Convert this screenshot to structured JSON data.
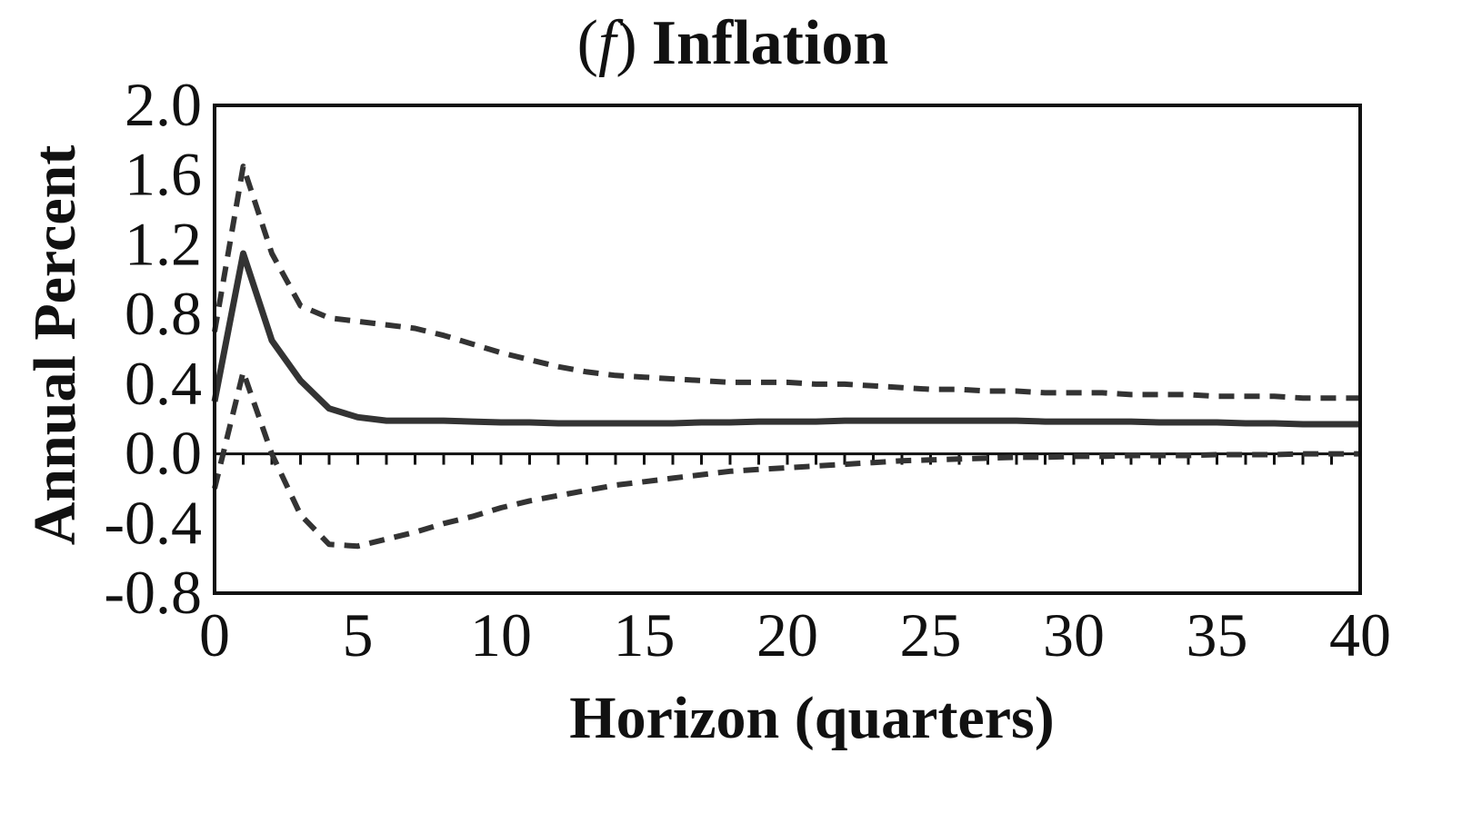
{
  "chart_data": {
    "type": "line",
    "title": {
      "prefix_open": "(",
      "prefix_letter": "f",
      "prefix_close": ")",
      "text": "Inflation"
    },
    "xlabel": "Horizon (quarters)",
    "ylabel": "Annual Percent",
    "xlim": [
      0,
      40
    ],
    "ylim": [
      -0.8,
      2.0
    ],
    "xticks": [
      0,
      5,
      10,
      15,
      20,
      25,
      30,
      35,
      40
    ],
    "yticks": [
      "2.0",
      "1.6",
      "1.2",
      "0.8",
      "0.4",
      "0.0",
      "-0.4",
      "-0.8"
    ],
    "ytick_values": [
      2.0,
      1.6,
      1.2,
      0.8,
      0.4,
      0.0,
      -0.4,
      -0.8
    ],
    "zero_line": true,
    "grid": false,
    "line_color": "#333333",
    "x": [
      0,
      1,
      2,
      3,
      4,
      5,
      6,
      7,
      8,
      9,
      10,
      11,
      12,
      13,
      14,
      15,
      16,
      17,
      18,
      19,
      20,
      21,
      22,
      23,
      24,
      25,
      26,
      27,
      28,
      29,
      30,
      31,
      32,
      33,
      34,
      35,
      36,
      37,
      38,
      39,
      40
    ],
    "series": [
      {
        "style": "solid",
        "values": [
          0.3,
          1.15,
          0.65,
          0.42,
          0.26,
          0.21,
          0.19,
          0.19,
          0.19,
          0.185,
          0.18,
          0.18,
          0.175,
          0.175,
          0.175,
          0.175,
          0.175,
          0.18,
          0.18,
          0.185,
          0.185,
          0.185,
          0.19,
          0.19,
          0.19,
          0.19,
          0.19,
          0.19,
          0.19,
          0.185,
          0.185,
          0.185,
          0.185,
          0.18,
          0.18,
          0.18,
          0.175,
          0.175,
          0.17,
          0.17,
          0.17
        ]
      },
      {
        "style": "dashed",
        "values": [
          0.7,
          1.65,
          1.15,
          0.85,
          0.78,
          0.76,
          0.74,
          0.72,
          0.68,
          0.63,
          0.58,
          0.54,
          0.5,
          0.47,
          0.45,
          0.44,
          0.43,
          0.42,
          0.41,
          0.41,
          0.41,
          0.4,
          0.4,
          0.39,
          0.38,
          0.37,
          0.37,
          0.36,
          0.36,
          0.35,
          0.35,
          0.35,
          0.34,
          0.34,
          0.34,
          0.33,
          0.33,
          0.33,
          0.32,
          0.32,
          0.32
        ]
      },
      {
        "style": "dashed",
        "values": [
          -0.2,
          0.47,
          0.0,
          -0.35,
          -0.52,
          -0.53,
          -0.49,
          -0.45,
          -0.4,
          -0.36,
          -0.31,
          -0.27,
          -0.24,
          -0.21,
          -0.18,
          -0.16,
          -0.14,
          -0.12,
          -0.1,
          -0.09,
          -0.08,
          -0.07,
          -0.06,
          -0.05,
          -0.04,
          -0.035,
          -0.03,
          -0.025,
          -0.02,
          -0.02,
          -0.015,
          -0.015,
          -0.01,
          -0.01,
          -0.01,
          -0.005,
          -0.005,
          -0.005,
          0.0,
          0.0,
          0.0
        ]
      }
    ]
  }
}
